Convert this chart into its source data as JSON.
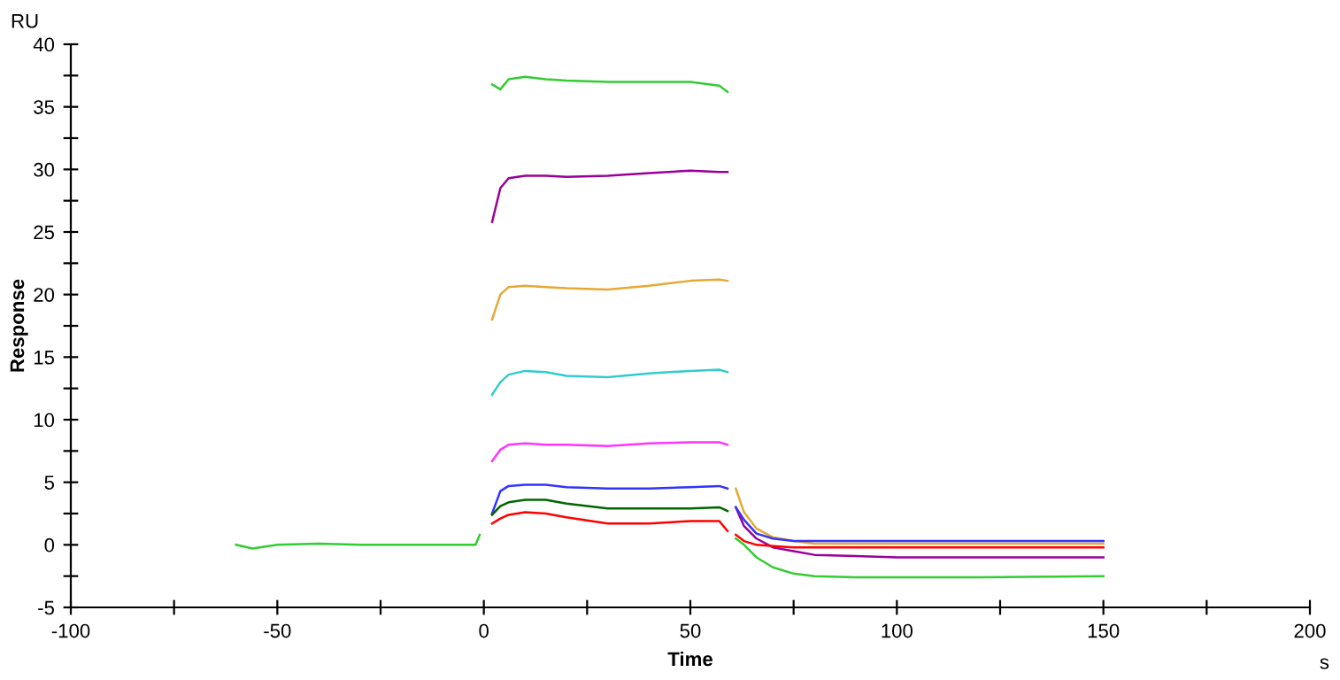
{
  "chart_data": {
    "type": "line",
    "xlabel": "Time",
    "ylabel": "Response",
    "annotations": [
      "RU",
      "s"
    ],
    "x": [
      -60,
      -56,
      -50,
      -40,
      -30,
      -20,
      -10,
      -2,
      -1,
      0.5,
      2,
      4,
      6,
      10,
      15,
      20,
      30,
      40,
      50,
      57,
      59,
      60,
      61,
      63,
      66,
      70,
      75,
      80,
      90,
      100,
      120,
      150
    ],
    "series": [
      {
        "color": "#33cc33",
        "values": [
          0,
          -0.3,
          0,
          0.1,
          0,
          0,
          0,
          0,
          0.8,
          null,
          36.8,
          36.4,
          37.2,
          37.4,
          37.2,
          37.1,
          37.0,
          37.0,
          37.0,
          36.7,
          36.2,
          null,
          0.5,
          0,
          -1,
          -1.8,
          -2.3,
          -2.5,
          -2.6,
          -2.6,
          -2.6,
          -2.5
        ]
      },
      {
        "color": "#990099",
        "values": [
          null,
          null,
          null,
          null,
          null,
          null,
          null,
          null,
          null,
          null,
          25.8,
          28.5,
          29.3,
          29.5,
          29.5,
          29.4,
          29.5,
          29.7,
          29.9,
          29.8,
          29.8,
          null,
          3,
          1.5,
          0.5,
          -0.2,
          -0.5,
          -0.8,
          -0.9,
          -1.0,
          -1.0,
          -1.0
        ]
      },
      {
        "color": "#e6a833",
        "values": [
          null,
          null,
          null,
          null,
          null,
          null,
          null,
          null,
          null,
          null,
          18,
          20,
          20.6,
          20.7,
          20.6,
          20.5,
          20.4,
          20.7,
          21.1,
          21.2,
          21.1,
          null,
          4.5,
          2.6,
          1.3,
          0.6,
          0.3,
          0.1,
          0.1,
          0.1,
          0.1,
          0.1
        ]
      },
      {
        "color": "#33cccc",
        "values": [
          null,
          null,
          null,
          null,
          null,
          null,
          null,
          null,
          null,
          null,
          12,
          13,
          13.6,
          13.9,
          13.8,
          13.5,
          13.4,
          13.7,
          13.9,
          14.0,
          13.8,
          null,
          null,
          null,
          null,
          null,
          null,
          null,
          null,
          null,
          null,
          null
        ]
      },
      {
        "color": "#ff33ff",
        "values": [
          null,
          null,
          null,
          null,
          null,
          null,
          null,
          null,
          null,
          null,
          6.7,
          7.6,
          8.0,
          8.1,
          8.0,
          8.0,
          7.9,
          8.1,
          8.2,
          8.2,
          8.0,
          null,
          null,
          null,
          null,
          null,
          null,
          null,
          null,
          null,
          null,
          null
        ]
      },
      {
        "color": "#3333ff",
        "values": [
          null,
          null,
          null,
          null,
          null,
          null,
          null,
          null,
          null,
          null,
          2.5,
          4.3,
          4.7,
          4.8,
          4.8,
          4.6,
          4.5,
          4.5,
          4.6,
          4.7,
          4.5,
          null,
          3,
          2.0,
          0.9,
          0.5,
          0.3,
          0.3,
          0.3,
          0.3,
          0.3,
          0.3
        ]
      },
      {
        "color": "#006600",
        "values": [
          null,
          null,
          null,
          null,
          null,
          null,
          null,
          null,
          null,
          null,
          2.4,
          3.1,
          3.4,
          3.6,
          3.6,
          3.3,
          2.9,
          2.9,
          2.9,
          3.0,
          2.7,
          null,
          null,
          null,
          null,
          null,
          null,
          null,
          null,
          null,
          null,
          null
        ]
      },
      {
        "color": "#ff0000",
        "values": [
          null,
          null,
          null,
          null,
          null,
          null,
          null,
          null,
          null,
          null,
          1.7,
          2.1,
          2.4,
          2.6,
          2.5,
          2.2,
          1.7,
          1.7,
          1.9,
          1.9,
          1.1,
          null,
          0.8,
          0.3,
          0,
          -0.1,
          -0.2,
          -0.2,
          -0.2,
          -0.2,
          -0.2,
          -0.2
        ]
      }
    ],
    "xlim": [
      -100,
      200
    ],
    "xticks": [
      -100,
      {
        "value": -75,
        "label": null
      },
      -50,
      {
        "value": -25,
        "label": null
      },
      0,
      {
        "value": 25,
        "label": null
      },
      50,
      {
        "value": 75,
        "label": null
      },
      100,
      {
        "value": 125,
        "label": null
      },
      150,
      {
        "value": 175,
        "label": null
      },
      200
    ],
    "ylim": [
      -5,
      40
    ],
    "yticks": [
      -5,
      {
        "value": -2.5,
        "label": null
      },
      0,
      {
        "value": 2.5,
        "label": null
      },
      5,
      {
        "value": 7.5,
        "label": null
      },
      10,
      {
        "value": 12.5,
        "label": null
      },
      15,
      {
        "value": 17.5,
        "label": null
      },
      20,
      {
        "value": 22.5,
        "label": null
      },
      25,
      {
        "value": 27.5,
        "label": null
      },
      30,
      {
        "value": 32.5,
        "label": null
      },
      35,
      {
        "value": 37.5,
        "label": null
      },
      40
    ],
    "grid": false,
    "legend": false,
    "marker": "none",
    "line_style": "solid"
  }
}
